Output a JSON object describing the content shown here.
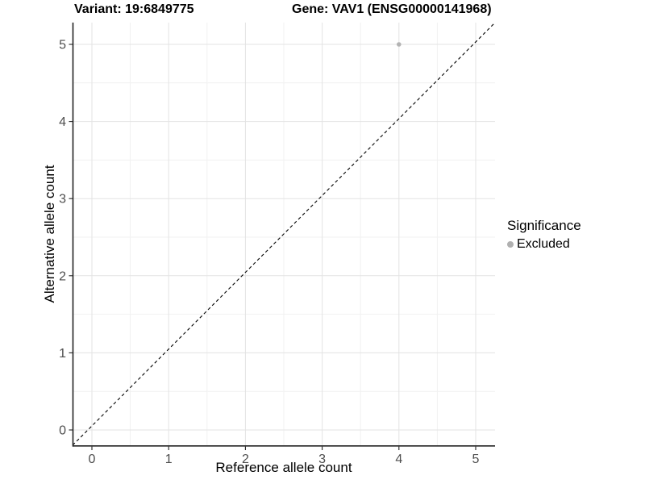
{
  "chart_data": {
    "type": "scatter",
    "title_left": "Variant: 19:6849775",
    "title_right": "Gene: VAV1 (ENSG00000141968)",
    "xlabel": "Reference allele count",
    "ylabel": "Alternative allele count",
    "xlim": [
      -0.25,
      5.25
    ],
    "ylim": [
      -0.25,
      5.25
    ],
    "x_ticks": [
      0,
      1,
      2,
      3,
      4,
      5
    ],
    "y_ticks": [
      0,
      1,
      2,
      3,
      4,
      5
    ],
    "grid": {
      "major": true,
      "minor": true
    },
    "reference_line": {
      "shape": "identity-diagonal",
      "style": "dashed",
      "color": "#000000",
      "from": [
        -0.25,
        -0.25
      ],
      "to": [
        5.25,
        5.25
      ]
    },
    "series": [
      {
        "name": "Excluded",
        "color": "#b3b3b3",
        "points": [
          {
            "x": 4,
            "y": 5
          }
        ]
      }
    ],
    "legend": {
      "title": "Significance",
      "position": "right",
      "items": [
        {
          "label": "Excluded",
          "color": "#b0b0b0"
        }
      ]
    },
    "colors": {
      "background": "#ffffff",
      "grid_major": "#e3e3e3",
      "grid_minor": "#f1f1f1",
      "axis": "#222222",
      "tick_label": "#4d4d4d"
    }
  }
}
